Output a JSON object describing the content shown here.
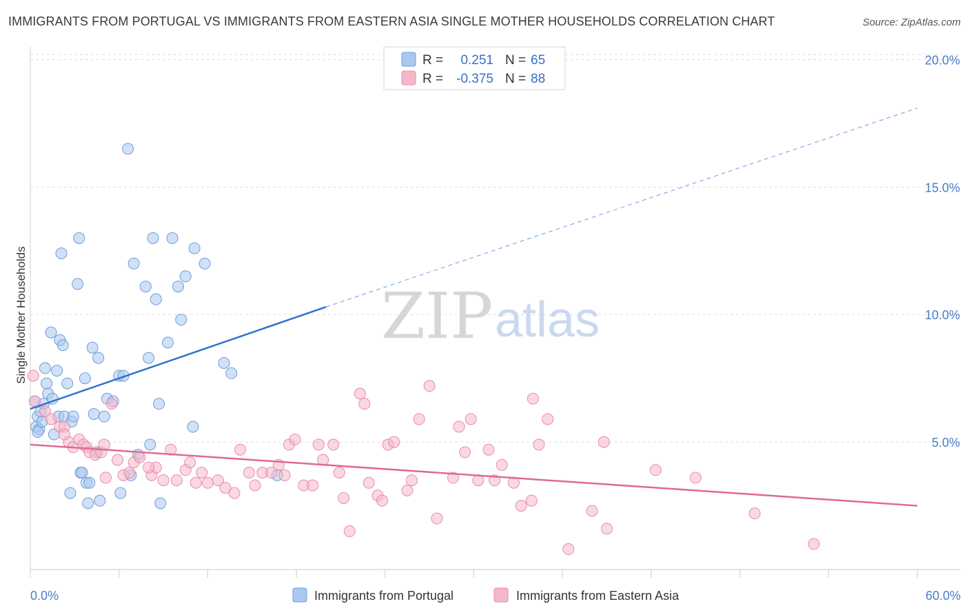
{
  "header": {
    "title": "IMMIGRANTS FROM PORTUGAL VS IMMIGRANTS FROM EASTERN ASIA SINGLE MOTHER HOUSEHOLDS CORRELATION CHART",
    "source": "Source: ZipAtlas.com"
  },
  "watermark": {
    "zip": "ZIP",
    "atlas": "atlas"
  },
  "stats": [
    {
      "r_label": "R =",
      "r_value": "0.251",
      "n_label": "N =",
      "n_value": "65"
    },
    {
      "r_label": "R =",
      "r_value": "-0.375",
      "n_label": "N =",
      "n_value": "88"
    }
  ],
  "colors": {
    "blue_fill": "#aac8f0",
    "blue_stroke": "#6f9bd8",
    "blue_line": "#2f72d0",
    "pink_fill": "#f5b8cb",
    "pink_stroke": "#e98aa8",
    "pink_line": "#e0698f",
    "grid": "#dddddd",
    "tick_label": "#4a7cc9"
  },
  "chart_data": {
    "type": "scatter",
    "title": "IMMIGRANTS FROM PORTUGAL VS IMMIGRANTS FROM EASTERN ASIA SINGLE MOTHER HOUSEHOLDS CORRELATION CHART",
    "xlabel": "",
    "ylabel": "Single Mother Households",
    "xlim": [
      0,
      60
    ],
    "ylim": [
      0,
      20.5
    ],
    "x_tick_labels": [
      "0.0%",
      "60.0%"
    ],
    "y_tick_labels": [
      "5.0%",
      "10.0%",
      "15.0%",
      "20.0%"
    ],
    "y_ticks": [
      5,
      10,
      15,
      20
    ],
    "grid": "horizontal dashed",
    "legend_position": "bottom-center",
    "series": [
      {
        "name": "Immigrants from Portugal",
        "color": "#aac8f0",
        "trend": {
          "x": [
            0,
            20
          ],
          "y": [
            6.3,
            10.3
          ],
          "dashed_extension_to": [
            60,
            18.1
          ]
        },
        "points": [
          [
            0.3,
            6.6
          ],
          [
            0.4,
            5.6
          ],
          [
            0.5,
            6.0
          ],
          [
            0.6,
            5.5
          ],
          [
            0.7,
            6.2
          ],
          [
            0.8,
            5.8
          ],
          [
            0.9,
            6.5
          ],
          [
            1.0,
            7.9
          ],
          [
            1.1,
            7.3
          ],
          [
            1.2,
            6.9
          ],
          [
            1.4,
            9.3
          ],
          [
            1.5,
            6.7
          ],
          [
            1.6,
            5.3
          ],
          [
            1.8,
            7.8
          ],
          [
            1.9,
            6.0
          ],
          [
            2.0,
            9.0
          ],
          [
            2.1,
            12.4
          ],
          [
            2.2,
            8.8
          ],
          [
            2.3,
            6.0
          ],
          [
            2.5,
            7.3
          ],
          [
            2.7,
            3.0
          ],
          [
            2.8,
            5.8
          ],
          [
            2.9,
            6.0
          ],
          [
            3.2,
            11.2
          ],
          [
            3.3,
            13.0
          ],
          [
            3.4,
            3.8
          ],
          [
            3.5,
            3.8
          ],
          [
            3.7,
            7.5
          ],
          [
            3.8,
            3.4
          ],
          [
            3.9,
            2.6
          ],
          [
            4.0,
            3.4
          ],
          [
            4.2,
            8.7
          ],
          [
            4.3,
            6.1
          ],
          [
            4.5,
            4.6
          ],
          [
            4.6,
            8.3
          ],
          [
            4.7,
            2.7
          ],
          [
            5.0,
            6.0
          ],
          [
            5.2,
            6.7
          ],
          [
            5.6,
            6.6
          ],
          [
            6.0,
            7.6
          ],
          [
            6.1,
            3.0
          ],
          [
            6.3,
            7.6
          ],
          [
            6.6,
            16.5
          ],
          [
            6.8,
            3.7
          ],
          [
            7.0,
            12.0
          ],
          [
            7.3,
            4.5
          ],
          [
            7.8,
            11.1
          ],
          [
            8.0,
            8.3
          ],
          [
            8.1,
            4.9
          ],
          [
            8.3,
            13.0
          ],
          [
            8.5,
            10.6
          ],
          [
            8.7,
            6.5
          ],
          [
            8.8,
            2.6
          ],
          [
            9.3,
            8.9
          ],
          [
            9.6,
            13.0
          ],
          [
            10.0,
            11.1
          ],
          [
            10.2,
            9.8
          ],
          [
            10.5,
            11.5
          ],
          [
            11.0,
            5.6
          ],
          [
            11.1,
            12.6
          ],
          [
            11.8,
            12.0
          ],
          [
            13.1,
            8.1
          ],
          [
            13.6,
            7.7
          ],
          [
            16.7,
            3.7
          ],
          [
            0.5,
            5.4
          ]
        ]
      },
      {
        "name": "Immigrants from Eastern Asia",
        "color": "#f5b8cb",
        "trend": {
          "x": [
            0,
            60
          ],
          "y": [
            4.9,
            2.5
          ]
        },
        "points": [
          [
            0.2,
            7.6
          ],
          [
            0.3,
            6.6
          ],
          [
            1.0,
            6.2
          ],
          [
            1.4,
            5.9
          ],
          [
            2.0,
            5.6
          ],
          [
            2.3,
            5.6
          ],
          [
            2.6,
            5.0
          ],
          [
            2.9,
            4.8
          ],
          [
            3.3,
            5.1
          ],
          [
            3.6,
            4.9
          ],
          [
            3.8,
            4.8
          ],
          [
            4.0,
            4.6
          ],
          [
            4.4,
            4.5
          ],
          [
            4.8,
            4.6
          ],
          [
            5.1,
            3.6
          ],
          [
            5.5,
            6.5
          ],
          [
            5.9,
            4.3
          ],
          [
            6.3,
            3.7
          ],
          [
            6.7,
            3.8
          ],
          [
            7.0,
            4.2
          ],
          [
            7.4,
            4.4
          ],
          [
            8.2,
            3.7
          ],
          [
            8.5,
            4.0
          ],
          [
            9.0,
            3.5
          ],
          [
            9.5,
            4.7
          ],
          [
            9.9,
            3.5
          ],
          [
            10.5,
            3.9
          ],
          [
            10.8,
            4.2
          ],
          [
            11.2,
            3.4
          ],
          [
            11.6,
            3.8
          ],
          [
            12.0,
            3.4
          ],
          [
            12.7,
            3.5
          ],
          [
            13.2,
            3.2
          ],
          [
            13.8,
            3.0
          ],
          [
            14.2,
            4.7
          ],
          [
            14.8,
            3.8
          ],
          [
            15.2,
            3.3
          ],
          [
            15.7,
            3.8
          ],
          [
            16.3,
            3.8
          ],
          [
            16.8,
            4.1
          ],
          [
            17.2,
            3.7
          ],
          [
            17.5,
            4.9
          ],
          [
            17.9,
            5.1
          ],
          [
            18.5,
            3.3
          ],
          [
            19.1,
            3.3
          ],
          [
            19.5,
            4.9
          ],
          [
            19.8,
            4.3
          ],
          [
            20.5,
            4.9
          ],
          [
            20.9,
            3.8
          ],
          [
            21.2,
            2.8
          ],
          [
            21.6,
            1.5
          ],
          [
            22.3,
            6.9
          ],
          [
            22.6,
            6.5
          ],
          [
            22.9,
            3.4
          ],
          [
            23.5,
            2.9
          ],
          [
            23.8,
            2.7
          ],
          [
            24.2,
            4.9
          ],
          [
            24.6,
            5.0
          ],
          [
            25.5,
            3.1
          ],
          [
            25.8,
            3.5
          ],
          [
            26.3,
            5.9
          ],
          [
            27.0,
            7.2
          ],
          [
            27.5,
            2.0
          ],
          [
            28.6,
            3.6
          ],
          [
            29.0,
            5.6
          ],
          [
            29.4,
            4.6
          ],
          [
            29.8,
            5.9
          ],
          [
            30.3,
            3.5
          ],
          [
            31.0,
            4.7
          ],
          [
            31.4,
            3.5
          ],
          [
            31.9,
            4.1
          ],
          [
            32.7,
            3.4
          ],
          [
            33.2,
            2.5
          ],
          [
            33.9,
            2.7
          ],
          [
            34.0,
            6.7
          ],
          [
            34.4,
            4.9
          ],
          [
            35.0,
            5.9
          ],
          [
            36.4,
            0.8
          ],
          [
            38.0,
            2.3
          ],
          [
            38.8,
            5.0
          ],
          [
            39.0,
            1.6
          ],
          [
            42.3,
            3.9
          ],
          [
            45.0,
            3.6
          ],
          [
            49.0,
            2.2
          ],
          [
            53.0,
            1.0
          ],
          [
            2.3,
            5.3
          ],
          [
            8.0,
            4.0
          ],
          [
            5.0,
            4.9
          ]
        ]
      }
    ]
  },
  "legend": {
    "items": [
      {
        "label": "Immigrants from Portugal"
      },
      {
        "label": "Immigrants from Eastern Asia"
      }
    ]
  }
}
